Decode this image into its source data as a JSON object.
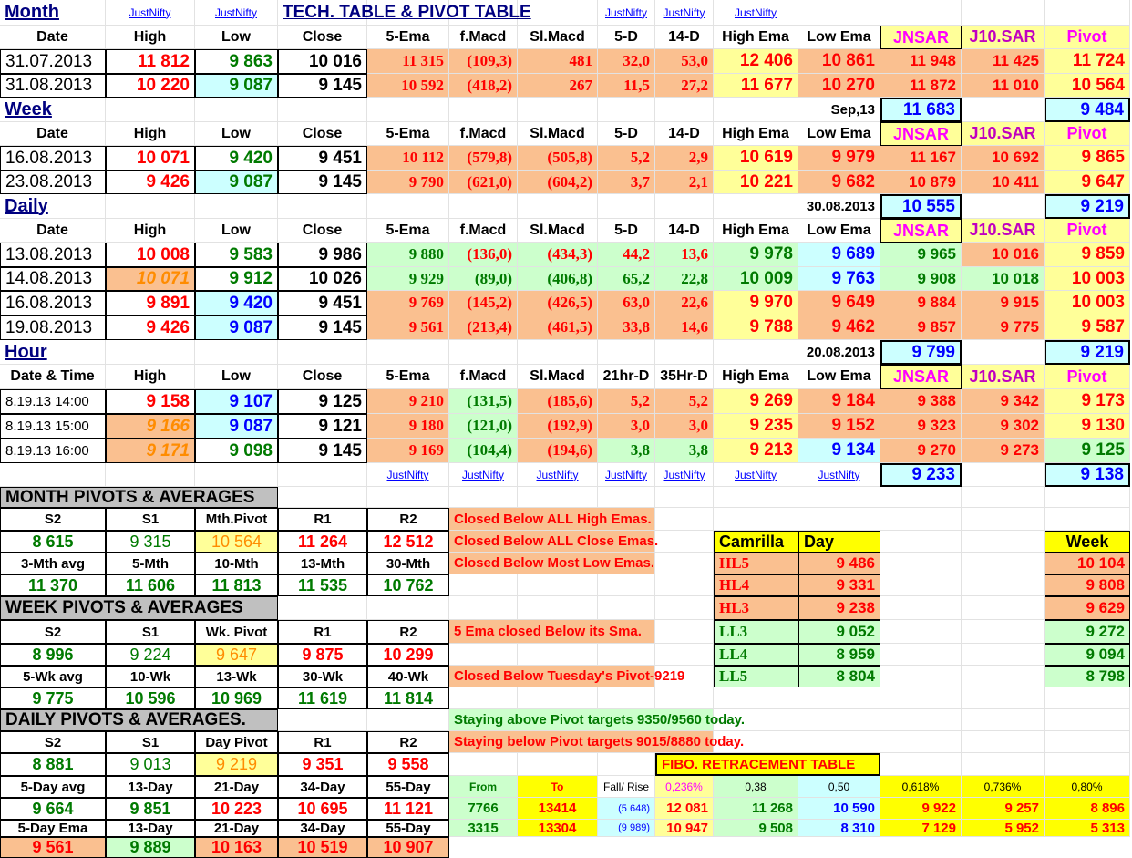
{
  "colors": {
    "peach": "#fac090",
    "yellow": "#ffff99",
    "green": "#ccffcc",
    "cyan": "#ccffff",
    "gold": "#ffff00",
    "grey": "#c0c0c0",
    "red": "#ff0000",
    "darkgreen": "#007a00",
    "blue": "#0000ff",
    "magenta": "#ff00ff",
    "orange": "#ff8c00",
    "darkblue": "#000080",
    "maroon": "#c00000"
  },
  "labels": {
    "month": "Month",
    "week": "Week",
    "daily": "Daily",
    "hour": "Hour",
    "title": "TECH. TABLE  &  PIVOT TABLE",
    "justnifty": "JustNifty",
    "sep13": "Sep,13",
    "d3008": "30.08.2013",
    "d2008": "20.08.2013"
  },
  "headers": [
    "Date",
    "High",
    "Low",
    "Close",
    "5-Ema",
    "f.Macd",
    "Sl.Macd",
    "5-D",
    "14-D",
    "High Ema",
    "Low Ema",
    "JNSAR",
    "J10.SAR",
    "Pivot"
  ],
  "hour_headers": [
    "Date & Time",
    "High",
    "Low",
    "Close",
    "5-Ema",
    "f.Macd",
    "Sl.Macd",
    "21hr-D",
    "35Hr-D",
    "High Ema",
    "Low Ema",
    "JNSAR",
    "J10.SAR",
    "Pivot"
  ],
  "month_rows": [
    [
      "31.07.2013",
      "11 812",
      "9 863",
      "10 016",
      "11 315",
      "(109,3)",
      "481",
      "32,0",
      "53,0",
      "12 406",
      "10 861",
      "11 948",
      "11 425",
      "11 724"
    ],
    [
      "31.08.2013",
      "10 220",
      "9 087",
      "9 145",
      "10 592",
      "(418,2)",
      "267",
      "11,5",
      "27,2",
      "11 677",
      "10 270",
      "11 872",
      "11 010",
      "10 564"
    ]
  ],
  "month_summary": {
    "jnsar": "11 683",
    "pivot": "9 484"
  },
  "week_rows": [
    [
      "16.08.2013",
      "10 071",
      "9 420",
      "9 451",
      "10 112",
      "(579,8)",
      "(505,8)",
      "5,2",
      "2,9",
      "10 619",
      "9 979",
      "11 167",
      "10 692",
      "9 865"
    ],
    [
      "23.08.2013",
      "9 426",
      "9 087",
      "9 145",
      "9 790",
      "(621,0)",
      "(604,2)",
      "3,7",
      "2,1",
      "10 221",
      "9 682",
      "10 879",
      "10 411",
      "9 647"
    ]
  ],
  "week_summary": {
    "jnsar": "10 555",
    "pivot": "9 219"
  },
  "daily_rows": [
    [
      "13.08.2013",
      "10 008",
      "9 583",
      "9 986",
      "9 880",
      "(136,0)",
      "(434,3)",
      "44,2",
      "13,6",
      "9 978",
      "9 689",
      "9 965",
      "10 016",
      "9 859"
    ],
    [
      "14.08.2013",
      "10 071",
      "9 912",
      "10 026",
      "9 929",
      "(89,0)",
      "(406,8)",
      "65,2",
      "22,8",
      "10 009",
      "9 763",
      "9 908",
      "10 018",
      "10 003"
    ],
    [
      "16.08.2013",
      "9 891",
      "9 420",
      "9 451",
      "9 769",
      "(145,2)",
      "(426,5)",
      "63,0",
      "22,6",
      "9 970",
      "9 649",
      "9 884",
      "9 915",
      "10 003"
    ],
    [
      "19.08.2013",
      "9 426",
      "9 087",
      "9 145",
      "9 561",
      "(213,4)",
      "(461,5)",
      "33,8",
      "14,6",
      "9 788",
      "9 462",
      "9 857",
      "9 775",
      "9 587"
    ]
  ],
  "daily_summary": {
    "jnsar": "9 799",
    "pivot": "9 219"
  },
  "hour_rows": [
    [
      "8.19.13 14:00",
      "9 158",
      "9 107",
      "9 125",
      "9 210",
      "(131,5)",
      "(185,6)",
      "5,2",
      "5,2",
      "9 269",
      "9 184",
      "9 388",
      "9 342",
      "9 173"
    ],
    [
      "8.19.13 15:00",
      "9 166",
      "9 087",
      "9 121",
      "9 180",
      "(121,0)",
      "(192,9)",
      "3,0",
      "3,0",
      "9 235",
      "9 152",
      "9 323",
      "9 302",
      "9 130"
    ],
    [
      "8.19.13 16:00",
      "9 171",
      "9 098",
      "9 145",
      "9 169",
      "(104,4)",
      "(194,6)",
      "3,8",
      "3,8",
      "9 213",
      "9 134",
      "9 270",
      "9 273",
      "9 125"
    ]
  ],
  "hour_summary": {
    "jnsar": "9 233",
    "pivot": "9 138"
  },
  "month_pivots": {
    "title": "MONTH PIVOTS  &  AVERAGES",
    "h1": [
      "S2",
      "S1",
      "Mth.Pivot",
      "R1",
      "R2"
    ],
    "v1": [
      "8 615",
      "9 315",
      "10 564",
      "11 264",
      "12 512"
    ],
    "h2": [
      "3-Mth avg",
      "5-Mth",
      "10-Mth",
      "13-Mth",
      "30-Mth"
    ],
    "v2": [
      "11 370",
      "11 606",
      "11 813",
      "11 535",
      "10 762"
    ]
  },
  "week_pivots": {
    "title": "WEEK PIVOTS  & AVERAGES",
    "h1": [
      "S2",
      "S1",
      "Wk. Pivot",
      "R1",
      "R2"
    ],
    "v1": [
      "8 996",
      "9 224",
      "9 647",
      "9 875",
      "10 299"
    ],
    "h2": [
      "5-Wk avg",
      "10-Wk",
      "13-Wk",
      "30-Wk",
      "40-Wk"
    ],
    "v2": [
      "9 775",
      "10 596",
      "10 969",
      "11 619",
      "11 814"
    ]
  },
  "daily_pivots": {
    "title": "DAILY PIVOTS  & AVERAGES.",
    "h1": [
      "S2",
      "S1",
      "Day  Pivot",
      "R1",
      "R2"
    ],
    "v1": [
      "8 881",
      "9 013",
      "9 219",
      "9 351",
      "9 558"
    ],
    "h2": [
      "5-Day avg",
      "13-Day",
      "21-Day",
      "34-Day",
      "55-Day"
    ],
    "v2": [
      "9 664",
      "9 851",
      "10 223",
      "10 695",
      "11 121"
    ],
    "h3": [
      "5-Day Ema",
      "13-Day",
      "21-Day",
      "34-Day",
      "55-Day"
    ],
    "v3": [
      "9 561",
      "9 889",
      "10 163",
      "10 519",
      "10 907"
    ]
  },
  "notes": [
    "Closed Below ALL High Emas.",
    "Closed Below ALL Close Emas.",
    "Closed Below Most Low Emas.",
    "5 Ema closed Below its Sma.",
    "Closed Below Tuesday's Pivot-9219",
    "Staying above Pivot targets 9350/9560 today.",
    "Staying below Pivot targets 9015/8880 today."
  ],
  "camrilla": {
    "title": "Camrilla",
    "day": "Day",
    "week": "Week",
    "rows": [
      [
        "HL5",
        "9 486",
        "10 104"
      ],
      [
        "HL4",
        "9 331",
        "9 808"
      ],
      [
        "HL3",
        "9 238",
        "9 629"
      ],
      [
        "LL3",
        "9 052",
        "9 272"
      ],
      [
        "LL4",
        "8 959",
        "9 094"
      ],
      [
        "LL5",
        "8 804",
        "8 798"
      ]
    ]
  },
  "fibo": {
    "title": "FIBO. RETRACEMENT TABLE",
    "headers": [
      "From",
      "To",
      "Fall/ Rise",
      "0,236%",
      "0,38",
      "0,50",
      "0,618%",
      "0,736%",
      "0,80%"
    ],
    "rows": [
      [
        "7766",
        "13414",
        "(5 648)",
        "12 081",
        "11 268",
        "10 590",
        "9 922",
        "9 257",
        "8 896"
      ],
      [
        "3315",
        "13304",
        "(9 989)",
        "10 947",
        "9 508",
        "8 310",
        "7 129",
        "5 952",
        "5 313"
      ]
    ]
  }
}
